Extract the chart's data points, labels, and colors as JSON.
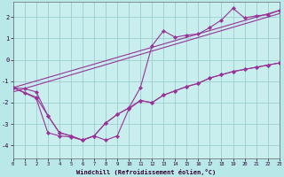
{
  "background_color": "#b8e8e8",
  "plot_bg_color": "#c8eeee",
  "grid_color": "#9ecece",
  "line_color": "#993399",
  "xlabel": "Windchill (Refroidissement éolien,°C)",
  "xlim": [
    0,
    23
  ],
  "ylim": [
    -4.6,
    2.7
  ],
  "yticks": [
    -4,
    -3,
    -2,
    -1,
    0,
    1,
    2
  ],
  "xticks": [
    0,
    1,
    2,
    3,
    4,
    5,
    6,
    7,
    8,
    9,
    10,
    11,
    12,
    13,
    14,
    15,
    16,
    17,
    18,
    19,
    20,
    21,
    22,
    23
  ],
  "series1_x": [
    0,
    1,
    2,
    3,
    4,
    5,
    6,
    7,
    8,
    9,
    10,
    11,
    12,
    13,
    14,
    15,
    16,
    17,
    18,
    19,
    20,
    21,
    22,
    23
  ],
  "series1_y": [
    -1.3,
    -1.55,
    -1.8,
    -3.4,
    -3.55,
    -3.6,
    -3.75,
    -3.55,
    -3.75,
    -3.55,
    -2.3,
    -1.9,
    -2.0,
    -1.65,
    -1.45,
    -1.25,
    -1.1,
    -0.85,
    -0.7,
    -0.55,
    -0.45,
    -0.35,
    -0.25,
    -0.15
  ],
  "series2_x": [
    0,
    1,
    2,
    3,
    4,
    5,
    6,
    7,
    8,
    9,
    10,
    11,
    12,
    13,
    14,
    15,
    16,
    17,
    18,
    19,
    20,
    21,
    22,
    23
  ],
  "series2_y": [
    -1.3,
    -1.35,
    -1.5,
    -2.6,
    -3.4,
    -3.55,
    -3.75,
    -3.55,
    -2.95,
    -2.55,
    -2.25,
    -1.9,
    -2.0,
    -1.65,
    -1.45,
    -1.25,
    -1.1,
    -0.85,
    -0.7,
    -0.55,
    -0.45,
    -0.35,
    -0.25,
    -0.15
  ],
  "series3_x": [
    0,
    2,
    3,
    4,
    5,
    6,
    7,
    8,
    9,
    10,
    11,
    12,
    13,
    14,
    15,
    16,
    17,
    18,
    19,
    20,
    21,
    22,
    23
  ],
  "series3_y": [
    -1.3,
    -1.75,
    -2.6,
    -3.4,
    -3.55,
    -3.75,
    -3.55,
    -2.95,
    -2.55,
    -2.25,
    -1.3,
    0.65,
    1.35,
    1.05,
    1.15,
    1.2,
    1.5,
    1.85,
    2.4,
    1.95,
    2.05,
    2.1,
    2.3
  ],
  "line4_x": [
    0,
    23
  ],
  "line4_y": [
    -1.3,
    2.3
  ],
  "line5_x": [
    0,
    23
  ],
  "line5_y": [
    -1.5,
    2.15
  ]
}
